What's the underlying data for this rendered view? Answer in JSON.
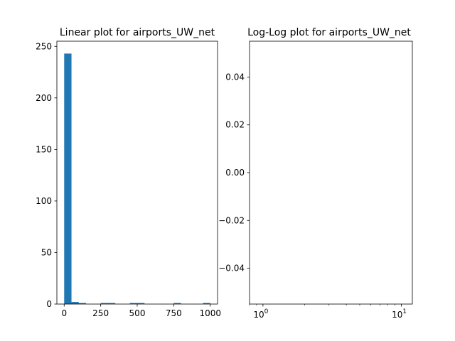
{
  "chart_data": [
    {
      "type": "bar",
      "title": "Linear plot for airports_UW_net",
      "xlabel": "",
      "ylabel": "",
      "xlim": [
        -50,
        1050
      ],
      "ylim": [
        0,
        255
      ],
      "xticks": [
        0,
        250,
        500,
        750,
        1000
      ],
      "xtick_labels": [
        "0",
        "250",
        "500",
        "750",
        "1000"
      ],
      "yticks": [
        0,
        50,
        100,
        150,
        200,
        250
      ],
      "ytick_labels": [
        "0",
        "50",
        "100",
        "150",
        "200",
        "250"
      ],
      "bins": [
        {
          "x0": 0,
          "x1": 50,
          "value": 243
        },
        {
          "x0": 50,
          "x1": 100,
          "value": 2
        },
        {
          "x0": 100,
          "x1": 150,
          "value": 1
        },
        {
          "x0": 150,
          "x1": 200,
          "value": 0
        },
        {
          "x0": 200,
          "x1": 250,
          "value": 0
        },
        {
          "x0": 250,
          "x1": 300,
          "value": 1
        },
        {
          "x0": 300,
          "x1": 350,
          "value": 1
        },
        {
          "x0": 350,
          "x1": 400,
          "value": 0
        },
        {
          "x0": 400,
          "x1": 450,
          "value": 0
        },
        {
          "x0": 450,
          "x1": 500,
          "value": 1
        },
        {
          "x0": 500,
          "x1": 550,
          "value": 1
        },
        {
          "x0": 550,
          "x1": 600,
          "value": 0
        },
        {
          "x0": 600,
          "x1": 650,
          "value": 0
        },
        {
          "x0": 650,
          "x1": 700,
          "value": 0
        },
        {
          "x0": 700,
          "x1": 750,
          "value": 0
        },
        {
          "x0": 750,
          "x1": 800,
          "value": 1
        },
        {
          "x0": 800,
          "x1": 850,
          "value": 0
        },
        {
          "x0": 850,
          "x1": 900,
          "value": 0
        },
        {
          "x0": 900,
          "x1": 950,
          "value": 0
        },
        {
          "x0": 950,
          "x1": 1000,
          "value": 1
        }
      ],
      "bar_color": "#1f77b4",
      "grid": false
    },
    {
      "type": "scatter",
      "title": "Log-Log plot for airports_UW_net",
      "xlabel": "",
      "ylabel": "",
      "xscale": "log",
      "xlim": [
        0.8,
        12
      ],
      "ylim": [
        -0.055,
        0.055
      ],
      "xticks": [
        1,
        10
      ],
      "xtick_labels": [
        "10^0",
        "10^1"
      ],
      "yticks": [
        -0.04,
        -0.02,
        0.0,
        0.02,
        0.04
      ],
      "ytick_labels": [
        "−0.04",
        "−0.02",
        "0.00",
        "0.02",
        "0.04"
      ],
      "points": [],
      "grid": false
    }
  ]
}
